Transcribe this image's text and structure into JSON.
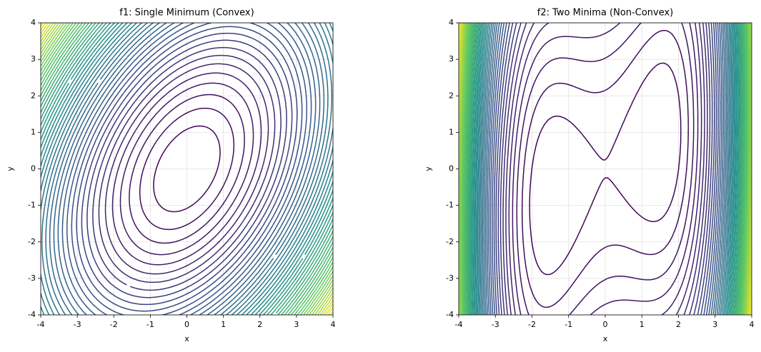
{
  "chart_data": [
    {
      "type": "contour",
      "title": "f1: Single Minimum (Convex)",
      "x_label": "x",
      "y_label": "y",
      "xlim": [
        -4,
        4
      ],
      "ylim": [
        -4,
        4
      ],
      "xticks": [
        -4,
        -3,
        -2,
        -1,
        0,
        1,
        2,
        3,
        4
      ],
      "yticks": [
        -4,
        -3,
        -2,
        -1,
        0,
        1,
        2,
        3,
        4
      ],
      "grid": true
    },
    {
      "type": "contour",
      "title": "f2: Two Minima (Non-Convex)",
      "x_label": "x",
      "y_label": "y",
      "xlim": [
        -4,
        4
      ],
      "ylim": [
        -4,
        4
      ],
      "xticks": [
        -4,
        -3,
        -2,
        -1,
        0,
        1,
        2,
        3,
        4
      ],
      "yticks": [
        -4,
        -3,
        -2,
        -1,
        0,
        1,
        2,
        3,
        4
      ],
      "grid": true
    }
  ]
}
